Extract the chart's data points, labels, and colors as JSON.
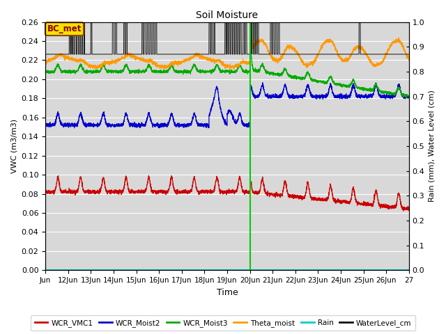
{
  "title": "Soil Moisture",
  "xlabel": "Time",
  "ylabel_left": "VWC (m3/m3)",
  "ylabel_right": "Rain (mm), Water Level (cm)",
  "ylim_left": [
    0.0,
    0.26
  ],
  "ylim_right": [
    0.0,
    1.0
  ],
  "x_tick_labels": [
    "Jun",
    "12Jun",
    "13Jun",
    "14Jun",
    "15Jun",
    "16Jun",
    "17Jun",
    "18Jun",
    "19Jun",
    "20Jun",
    "21Jun",
    "22Jun",
    "23Jun",
    "24Jun",
    "25Jun",
    "26Jun",
    "27"
  ],
  "annotation_text": "BC_met",
  "colors": {
    "WCR_VMC1": "#cc0000",
    "WCR_Moist2": "#0000cc",
    "WCR_Moist3": "#00aa00",
    "Theta_moist": "#ff9900",
    "Rain": "#00cccc",
    "WaterLevel_cm": "#111111",
    "green_vline": "#00cc00"
  },
  "bg_color": "#d8d8d8",
  "grid_color": "#ffffff",
  "legend_labels": [
    "WCR_VMC1",
    "WCR_Moist2",
    "WCR_Moist3",
    "Theta_moist",
    "Rain",
    "WaterLevel_cm"
  ]
}
